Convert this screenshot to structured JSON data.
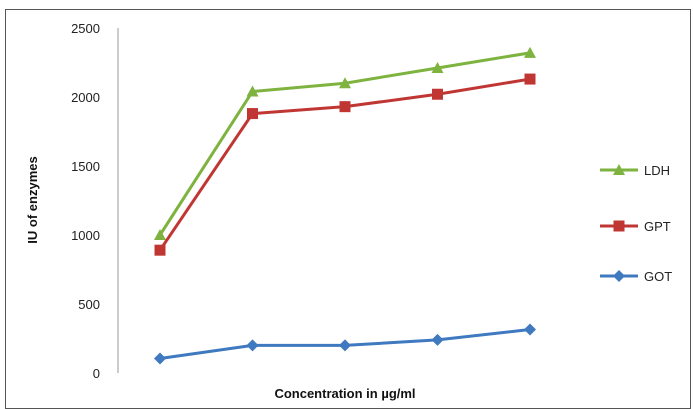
{
  "chart_data": {
    "type": "line",
    "title": "",
    "xlabel": "Concentration in µg/ml",
    "ylabel": "IU of enzymes",
    "x": [
      1,
      2,
      3,
      4,
      5
    ],
    "ylim": [
      0,
      2500
    ],
    "yticks": [
      "0",
      "500",
      "1000",
      "1500",
      "2000",
      "2500"
    ],
    "grid": false,
    "legend_position": "right",
    "series": [
      {
        "name": "LDH",
        "color": "#7db33e",
        "marker": "triangle",
        "values": [
          1000,
          2040,
          2100,
          2210,
          2320
        ]
      },
      {
        "name": "GPT",
        "color": "#c03633",
        "marker": "square",
        "values": [
          890,
          1880,
          1930,
          2020,
          2130
        ]
      },
      {
        "name": "GOT",
        "color": "#3f79bf",
        "marker": "diamond",
        "values": [
          105,
          200,
          200,
          240,
          315
        ]
      }
    ]
  }
}
